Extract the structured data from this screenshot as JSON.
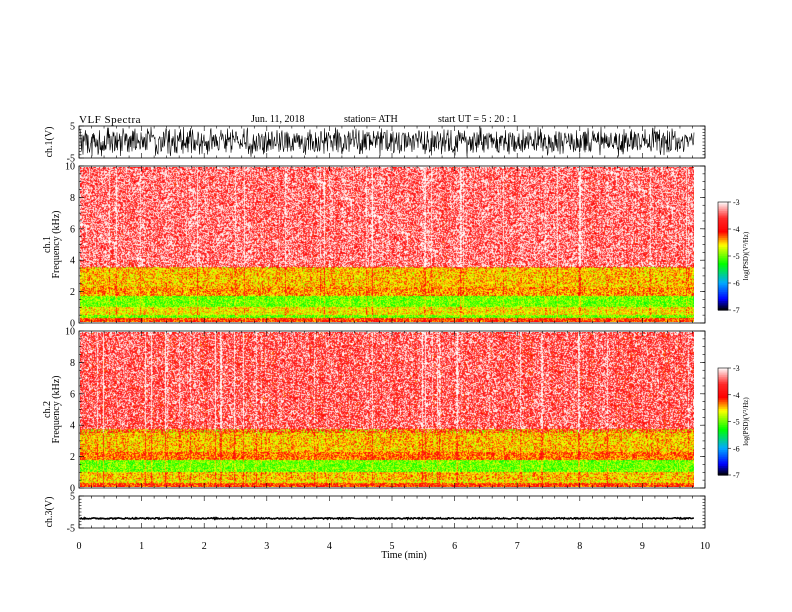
{
  "header": {
    "title": "VLF  Spectra",
    "date": "Jun. 11, 2018",
    "station": "station= ATH",
    "start": "start  UT  =    5  : 20 : 1"
  },
  "chart_data": [
    {
      "type": "line",
      "panel": "waveform",
      "ylabel": "ch.1(V)",
      "ylim": [
        -5,
        5
      ],
      "yticks": [
        "5",
        "-5"
      ],
      "trace": "dense black waveform filling roughly -4 to 4 V"
    },
    {
      "type": "heatmap",
      "panel": "spectrogram",
      "ylabel_line1": "ch.1",
      "ylabel_line2": "Frequency  (kHz)",
      "ylim": [
        0,
        10
      ],
      "yticks": [
        "0",
        "2",
        "4",
        "6",
        "8",
        "10"
      ],
      "bands_khz": [
        {
          "from": 0,
          "to": 0.3,
          "level": -4.2
        },
        {
          "from": 0.3,
          "to": 0.5,
          "level": -5.0
        },
        {
          "from": 0.5,
          "to": 1.0,
          "level": -4.6
        },
        {
          "from": 1.0,
          "to": 1.7,
          "level": -5.0
        },
        {
          "from": 1.7,
          "to": 2.3,
          "level": -4.4
        },
        {
          "from": 2.3,
          "to": 3.6,
          "level": -4.5
        },
        {
          "from": 3.6,
          "to": 10,
          "level": -3.6
        }
      ],
      "colorbar": {
        "min": -7,
        "max": -3,
        "ticks": [
          "-3",
          "-4",
          "-5",
          "-6",
          "-7"
        ],
        "label": "log(PSD)(V²/Hz)"
      }
    },
    {
      "type": "heatmap",
      "panel": "spectrogram",
      "ylabel_line1": "ch.2",
      "ylabel_line2": "Frequency  (kHz)",
      "ylim": [
        0,
        10
      ],
      "yticks": [
        "0",
        "2",
        "4",
        "6",
        "8",
        "10"
      ],
      "bands_khz": [
        {
          "from": 0,
          "to": 0.3,
          "level": -4.2
        },
        {
          "from": 0.3,
          "to": 0.5,
          "level": -4.6
        },
        {
          "from": 0.5,
          "to": 1.0,
          "level": -4.5
        },
        {
          "from": 1.0,
          "to": 1.8,
          "level": -5.0
        },
        {
          "from": 1.8,
          "to": 2.3,
          "level": -4.3
        },
        {
          "from": 2.3,
          "to": 3.8,
          "level": -4.5
        },
        {
          "from": 3.8,
          "to": 10,
          "level": -3.7
        }
      ],
      "colorbar": {
        "min": -7,
        "max": -3,
        "ticks": [
          "-3",
          "-4",
          "-5",
          "-6",
          "-7"
        ],
        "label": "log(PSD)(V²/Hz)"
      }
    },
    {
      "type": "line",
      "panel": "waveform",
      "ylabel": "ch.3(V)",
      "ylim": [
        -5,
        5
      ],
      "yticks": [
        "5",
        "-5"
      ],
      "trace_level": -2,
      "trace_amplitude": 0.2
    }
  ],
  "xaxis": {
    "label": "Time  (min)",
    "xlim": [
      0,
      10
    ],
    "ticks": [
      "0",
      "1",
      "2",
      "3",
      "4",
      "5",
      "6",
      "7",
      "8",
      "9",
      "10"
    ],
    "data_end": 9.83
  },
  "colors": {
    "axis": "#000000",
    "colormap": [
      "#000000",
      "#0000ff",
      "#00aaff",
      "#00ff00",
      "#ffff00",
      "#ff0000",
      "#ffffff"
    ]
  }
}
